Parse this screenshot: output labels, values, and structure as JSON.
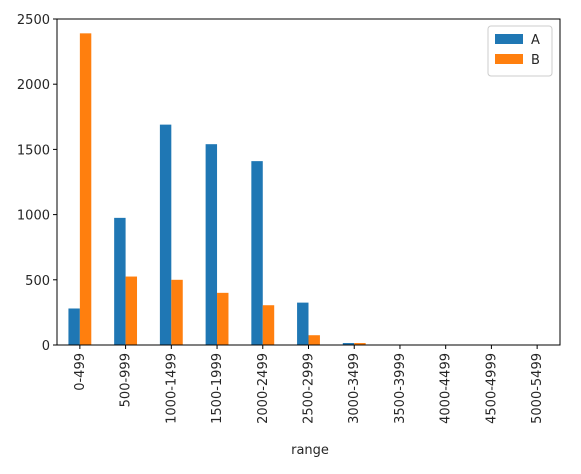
{
  "chart_data": {
    "type": "bar",
    "title": "",
    "xlabel": "range",
    "ylabel": "",
    "categories": [
      "0-499",
      "500-999",
      "1000-1499",
      "1500-1999",
      "2000-2499",
      "2500-2999",
      "3000-3499",
      "3500-3999",
      "4000-4499",
      "4500-4999",
      "5000-5499"
    ],
    "series": [
      {
        "name": "A",
        "color": "#1f77b4",
        "values": [
          280,
          975,
          1690,
          1540,
          1410,
          325,
          15,
          0,
          0,
          0,
          0
        ]
      },
      {
        "name": "B",
        "color": "#ff7f0e",
        "values": [
          2390,
          525,
          500,
          400,
          305,
          75,
          15,
          0,
          0,
          0,
          0
        ]
      }
    ],
    "ylim": [
      0,
      2500
    ],
    "yticks": [
      0,
      500,
      1000,
      1500,
      2000,
      2500
    ],
    "xtick_rotation": "vertical",
    "legend": "top-right",
    "grid": false
  }
}
